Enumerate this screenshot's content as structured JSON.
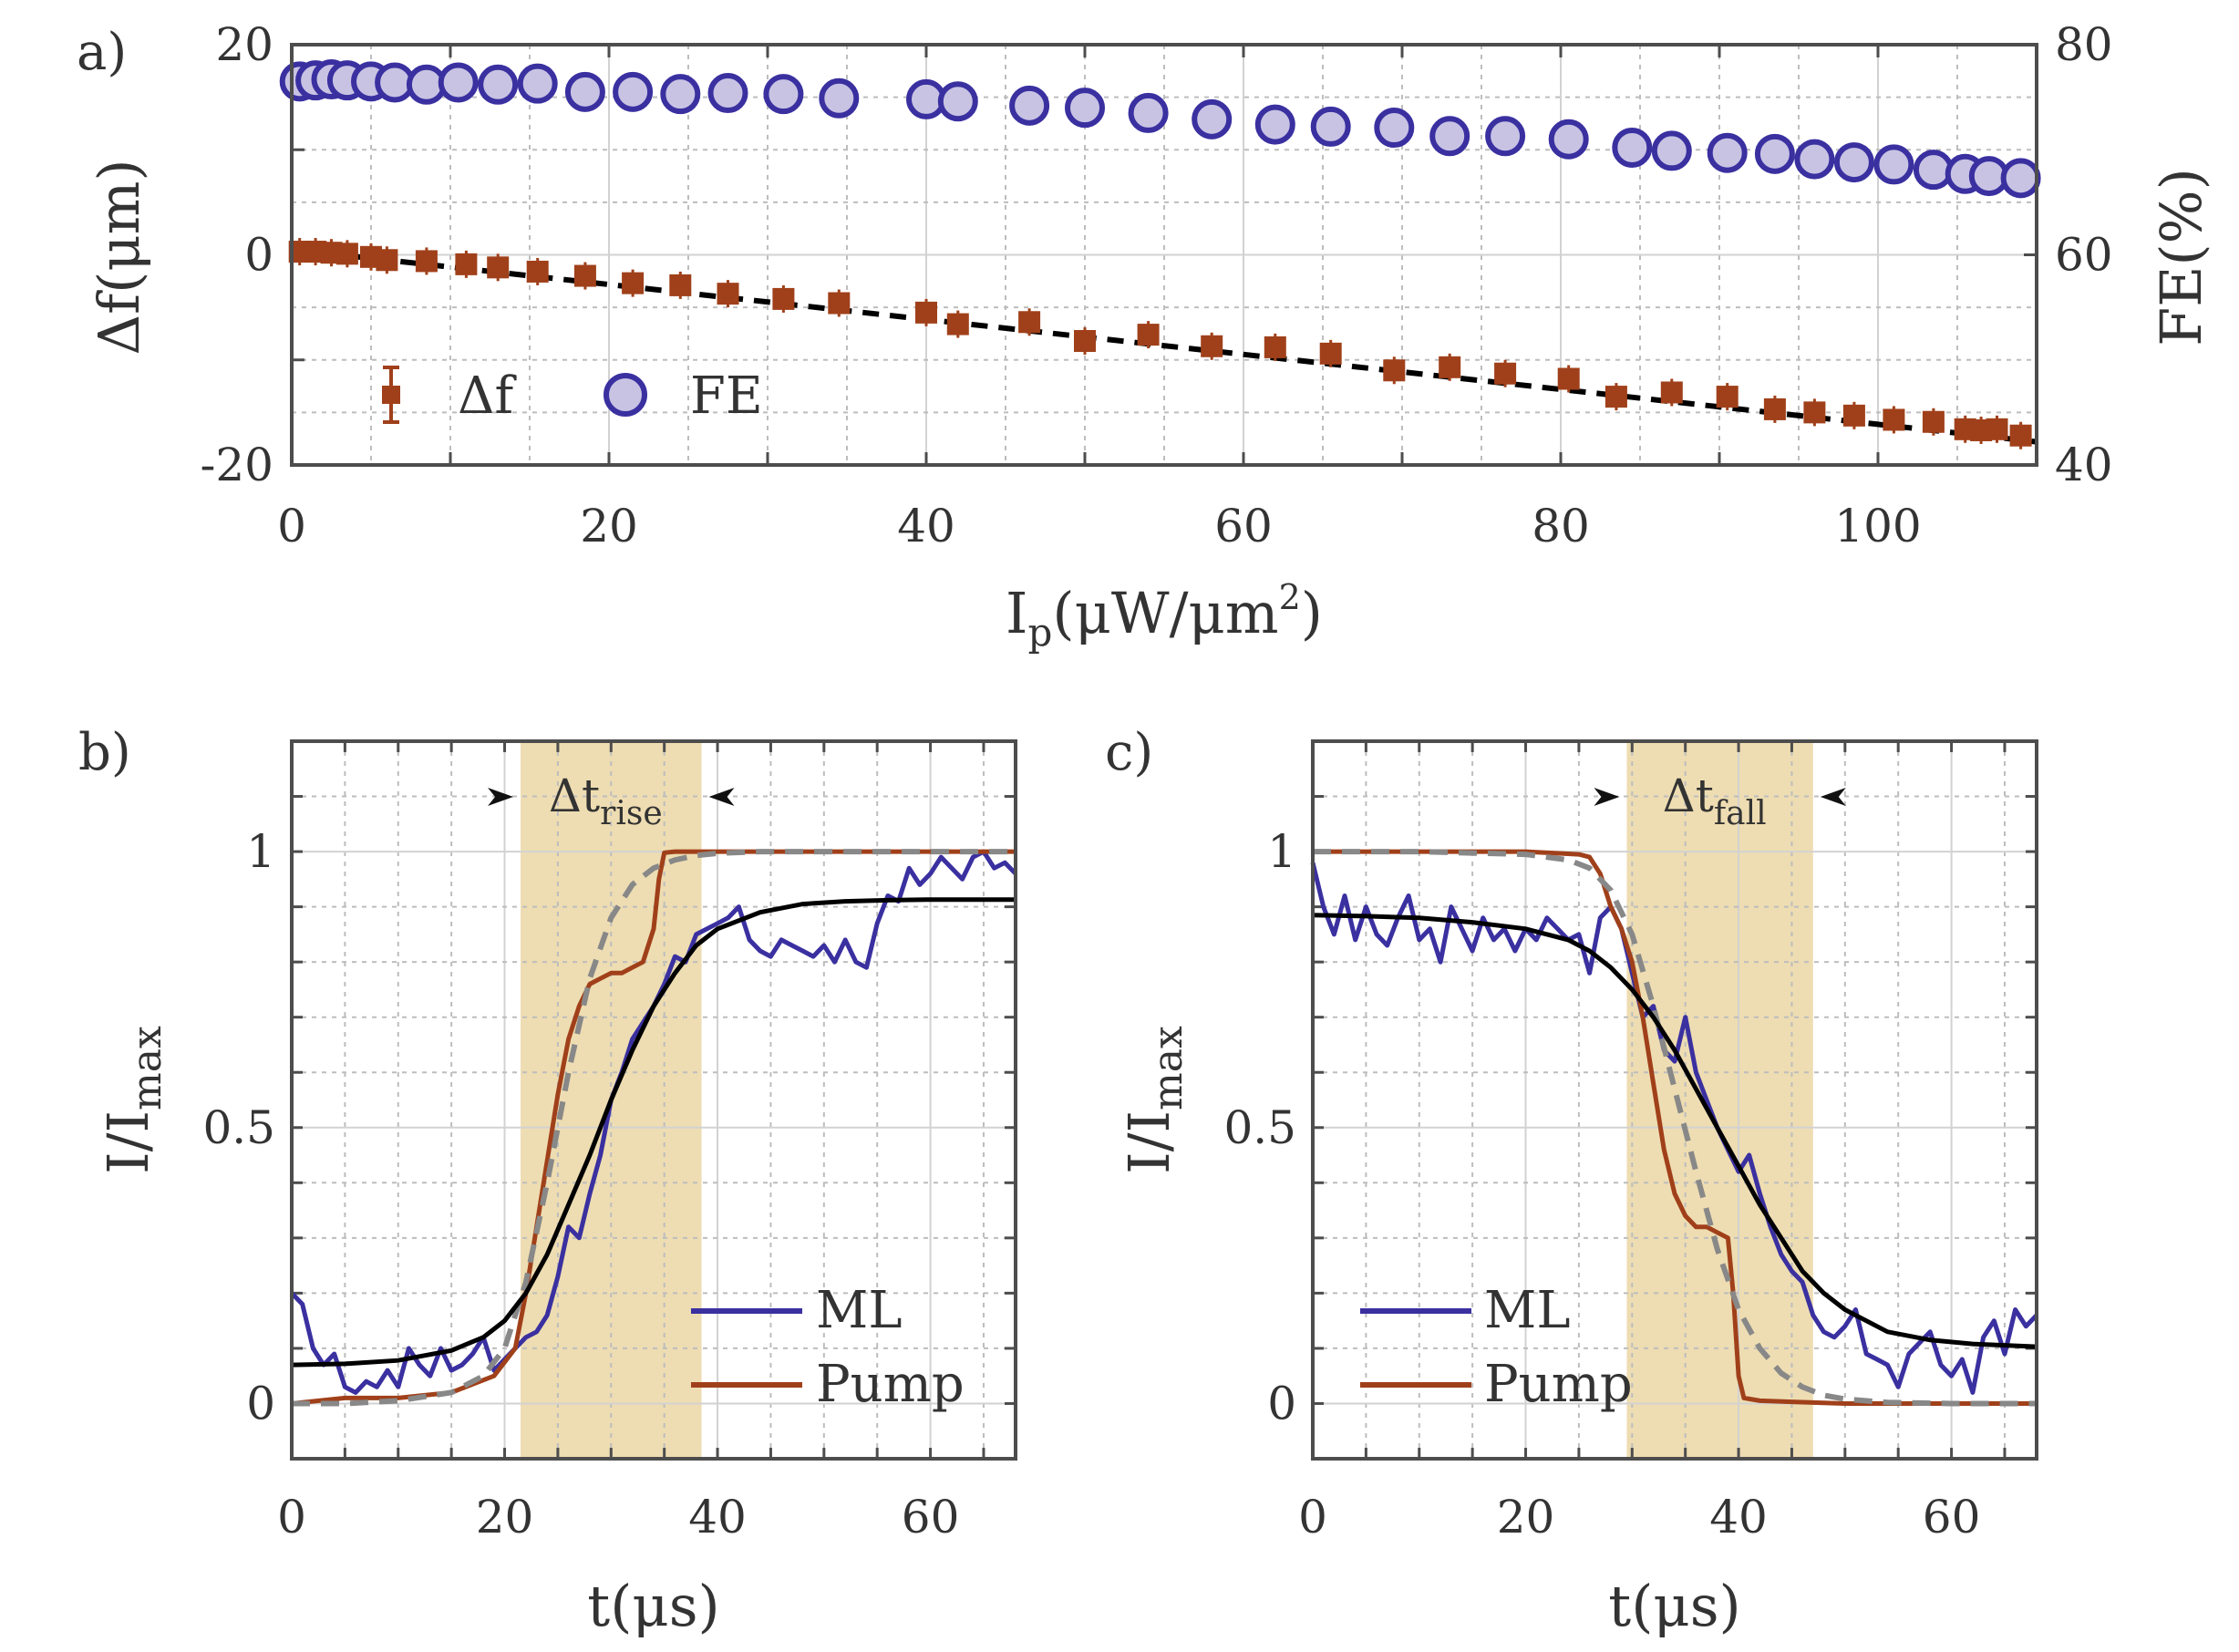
{
  "figure": {
    "panel_labels": [
      "a)",
      "b)",
      "c)"
    ]
  },
  "chart_data": [
    {
      "id": "a",
      "type": "scatter",
      "panel": "a)",
      "xlabel_main": "I",
      "xlabel_sub": "p",
      "xlabel_rest": "(μW/μm",
      "xlabel_sup": "2",
      "xlabel_end": ")",
      "ylabel_left": "Δf(μm)",
      "ylabel_right": "FE(%)",
      "xlim": [
        0,
        110
      ],
      "ylim_left": [
        -20,
        20
      ],
      "ylim_right": [
        40,
        80
      ],
      "xticks": [
        0,
        20,
        40,
        60,
        80,
        100
      ],
      "xtick_labels": [
        "0",
        "20",
        "40",
        "60",
        "80",
        "100"
      ],
      "yticks_left": [
        20,
        0,
        -20
      ],
      "ytick_labels_left": [
        "20",
        "0",
        "-20"
      ],
      "yticks_right": [
        80,
        60,
        40
      ],
      "ytick_labels_right": [
        "80",
        "60",
        "40"
      ],
      "grid": true,
      "legend": {
        "position": "lower-left",
        "entries": [
          "Δf",
          "FE"
        ]
      },
      "colors": {
        "df": "#A0401A",
        "fe_edge": "#3A30A0",
        "fe_fill": "#C8C3E3",
        "fit": "#000000"
      },
      "series": [
        {
          "name": "Δf",
          "axis": "left",
          "marker": "square",
          "x": [
            0.5,
            1.5,
            2.5,
            3.5,
            5,
            6,
            8.5,
            11,
            13,
            15.5,
            18.5,
            21.5,
            24.5,
            27.5,
            31,
            34.5,
            40,
            42,
            46.5,
            50,
            54,
            58,
            62,
            65.5,
            69.5,
            73,
            76.5,
            80.5,
            83.5,
            87,
            90.5,
            93.5,
            96,
            98.5,
            101,
            103.5,
            105.5,
            106.5,
            107.5,
            109
          ],
          "y": [
            0.3,
            0.3,
            0.2,
            0.1,
            -0.2,
            -0.5,
            -0.6,
            -0.9,
            -1.2,
            -1.6,
            -2.0,
            -2.7,
            -2.9,
            -3.7,
            -4.2,
            -4.6,
            -5.5,
            -6.6,
            -6.4,
            -8.2,
            -7.6,
            -8.7,
            -8.8,
            -9.4,
            -11.0,
            -10.7,
            -11.3,
            -11.8,
            -13.5,
            -13.1,
            -13.5,
            -14.7,
            -15.0,
            -15.3,
            -15.7,
            -15.9,
            -16.6,
            -16.7,
            -16.6,
            -17.2
          ]
        },
        {
          "name": "FE",
          "axis": "right",
          "marker": "circle",
          "x": [
            0.5,
            1.5,
            2.5,
            3.5,
            5,
            6.5,
            8.5,
            10.5,
            13,
            15.5,
            18.5,
            21.5,
            24.5,
            27.5,
            31,
            34.5,
            40,
            42,
            46.5,
            50,
            54,
            58,
            62,
            65.5,
            69.5,
            73,
            76.5,
            80.5,
            84.5,
            87,
            90.5,
            93.5,
            96,
            98.5,
            101,
            103.5,
            105.5,
            107,
            109
          ],
          "y": [
            76.5,
            76.6,
            76.7,
            76.6,
            76.5,
            76.4,
            76.2,
            76.4,
            76.2,
            76.3,
            75.5,
            75.5,
            75.3,
            75.4,
            75.3,
            74.9,
            74.8,
            74.6,
            74.2,
            74.0,
            73.5,
            72.9,
            72.4,
            72.2,
            72.1,
            71.3,
            71.3,
            71.0,
            70.2,
            69.9,
            69.7,
            69.6,
            69.1,
            68.8,
            68.6,
            68.1,
            67.7,
            67.5,
            67.3
          ]
        },
        {
          "name": "fit",
          "axis": "left",
          "style": "dashed",
          "x": [
            0,
            110
          ],
          "y": [
            0.5,
            -17.8
          ]
        }
      ]
    },
    {
      "id": "b",
      "type": "line",
      "panel": "b)",
      "xlabel": "t(μs)",
      "ylabel_main": "I/I",
      "ylabel_sub": "max",
      "xlim": [
        0,
        68
      ],
      "ylim": [
        -0.1,
        1.2
      ],
      "xticks": [
        0,
        20,
        40,
        60
      ],
      "xtick_labels": [
        "0",
        "20",
        "40",
        "60"
      ],
      "yticks": [
        0,
        0.5,
        1
      ],
      "ytick_labels": [
        "0",
        "0.5",
        "1"
      ],
      "grid": true,
      "shaded_region": [
        21.5,
        38.5
      ],
      "annotation": {
        "main": "Δt",
        "sub": "rise"
      },
      "legend": {
        "position": "lower-right",
        "entries": [
          "ML",
          "Pump"
        ]
      },
      "series": [
        {
          "name": "ML",
          "color": "#3A30A0",
          "x": [
            0,
            1,
            2,
            3,
            4,
            5,
            6,
            7,
            8,
            9,
            10,
            11,
            12,
            13,
            14,
            15,
            16,
            17,
            18,
            19,
            20,
            21,
            22,
            23,
            24,
            25,
            26,
            27,
            28,
            29,
            30,
            31,
            32,
            33,
            34,
            35,
            36,
            37,
            38,
            39,
            40,
            41,
            42,
            43,
            44,
            45,
            46,
            47,
            48,
            49,
            50,
            51,
            52,
            53,
            54,
            55,
            56,
            57,
            58,
            59,
            60,
            61,
            62,
            63,
            64,
            65,
            66,
            67,
            68
          ],
          "y": [
            0.2,
            0.18,
            0.1,
            0.07,
            0.09,
            0.03,
            0.02,
            0.04,
            0.03,
            0.06,
            0.03,
            0.1,
            0.07,
            0.05,
            0.1,
            0.06,
            0.07,
            0.09,
            0.12,
            0.06,
            0.08,
            0.1,
            0.12,
            0.13,
            0.16,
            0.23,
            0.32,
            0.3,
            0.38,
            0.45,
            0.55,
            0.6,
            0.66,
            0.69,
            0.72,
            0.76,
            0.81,
            0.8,
            0.85,
            0.86,
            0.87,
            0.88,
            0.9,
            0.84,
            0.82,
            0.81,
            0.84,
            0.83,
            0.82,
            0.81,
            0.83,
            0.8,
            0.84,
            0.8,
            0.79,
            0.87,
            0.92,
            0.91,
            0.97,
            0.94,
            0.96,
            0.99,
            0.97,
            0.95,
            0.99,
            1.0,
            0.97,
            0.98,
            0.96
          ]
        },
        {
          "name": "Pump",
          "color": "#A0401A",
          "x": [
            0,
            5,
            10,
            15,
            19,
            21,
            22,
            23,
            24,
            25,
            26,
            27,
            28,
            29,
            30,
            31,
            32,
            33,
            34,
            34.5,
            35,
            36,
            38,
            40,
            45,
            50,
            55,
            60,
            65,
            68
          ],
          "y": [
            0.0,
            0.01,
            0.01,
            0.02,
            0.05,
            0.1,
            0.2,
            0.32,
            0.44,
            0.56,
            0.66,
            0.72,
            0.76,
            0.77,
            0.78,
            0.78,
            0.79,
            0.8,
            0.86,
            0.95,
            0.998,
            1.0,
            1.0,
            1.0,
            1.0,
            1.0,
            1.0,
            1.0,
            1.0,
            1.0
          ]
        },
        {
          "name": "pump_fit",
          "color": "#888888",
          "style": "dashed",
          "x": [
            0,
            5,
            10,
            15,
            18,
            20,
            22,
            24,
            26,
            28,
            30,
            32,
            34,
            36,
            38,
            40,
            44,
            50,
            60,
            68
          ],
          "y": [
            0.0,
            0.0,
            0.005,
            0.02,
            0.05,
            0.1,
            0.22,
            0.4,
            0.6,
            0.77,
            0.88,
            0.94,
            0.97,
            0.985,
            0.993,
            0.997,
            1.0,
            1.0,
            1.0,
            1.0
          ]
        },
        {
          "name": "ml_fit",
          "color": "#000000",
          "x": [
            0,
            5,
            10,
            15,
            18,
            20,
            22,
            24,
            26,
            28,
            30,
            32,
            34,
            36,
            38,
            40,
            44,
            48,
            52,
            56,
            60,
            64,
            68
          ],
          "y": [
            0.07,
            0.072,
            0.078,
            0.096,
            0.12,
            0.15,
            0.2,
            0.27,
            0.36,
            0.45,
            0.55,
            0.64,
            0.72,
            0.78,
            0.83,
            0.86,
            0.89,
            0.905,
            0.91,
            0.912,
            0.913,
            0.913,
            0.913
          ]
        }
      ]
    },
    {
      "id": "c",
      "type": "line",
      "panel": "c)",
      "xlabel": "t(μs)",
      "ylabel_main": "I/I",
      "ylabel_sub": "max",
      "xlim": [
        0,
        68
      ],
      "ylim": [
        -0.1,
        1.2
      ],
      "xticks": [
        0,
        20,
        40,
        60
      ],
      "xtick_labels": [
        "0",
        "20",
        "40",
        "60"
      ],
      "yticks": [
        0,
        0.5,
        1
      ],
      "ytick_labels": [
        "0",
        "0.5",
        "1"
      ],
      "grid": true,
      "shaded_region": [
        29.5,
        47
      ],
      "annotation": {
        "main": "Δt",
        "sub": "fall"
      },
      "legend": {
        "position": "lower-left",
        "entries": [
          "ML",
          "Pump"
        ]
      },
      "series": [
        {
          "name": "ML",
          "color": "#3A30A0",
          "x": [
            0,
            1,
            2,
            3,
            4,
            5,
            6,
            7,
            8,
            9,
            10,
            11,
            12,
            13,
            14,
            15,
            16,
            17,
            18,
            19,
            20,
            21,
            22,
            23,
            24,
            25,
            26,
            27,
            28,
            29,
            30,
            31,
            32,
            33,
            34,
            35,
            36,
            37,
            38,
            39,
            40,
            41,
            42,
            43,
            44,
            45,
            46,
            47,
            48,
            49,
            50,
            51,
            52,
            53,
            54,
            55,
            56,
            57,
            58,
            59,
            60,
            61,
            62,
            63,
            64,
            65,
            66,
            67,
            68
          ],
          "y": [
            0.98,
            0.9,
            0.85,
            0.92,
            0.84,
            0.9,
            0.85,
            0.83,
            0.88,
            0.92,
            0.84,
            0.86,
            0.8,
            0.9,
            0.86,
            0.82,
            0.88,
            0.84,
            0.86,
            0.82,
            0.86,
            0.84,
            0.88,
            0.86,
            0.84,
            0.85,
            0.78,
            0.88,
            0.9,
            0.86,
            0.78,
            0.7,
            0.72,
            0.64,
            0.62,
            0.7,
            0.6,
            0.55,
            0.5,
            0.46,
            0.42,
            0.45,
            0.38,
            0.32,
            0.27,
            0.24,
            0.22,
            0.16,
            0.13,
            0.12,
            0.14,
            0.17,
            0.09,
            0.08,
            0.07,
            0.03,
            0.09,
            0.11,
            0.13,
            0.07,
            0.05,
            0.08,
            0.02,
            0.12,
            0.15,
            0.09,
            0.17,
            0.14,
            0.16
          ]
        },
        {
          "name": "Pump",
          "color": "#A0401A",
          "x": [
            0,
            5,
            10,
            15,
            20,
            25,
            26,
            27,
            28,
            29,
            30,
            31,
            32,
            33,
            34,
            35,
            36,
            37,
            38,
            39,
            39.5,
            40,
            40.5,
            42,
            45,
            50,
            55,
            60,
            65,
            68
          ],
          "y": [
            1.0,
            1.0,
            1.0,
            1.0,
            1.0,
            0.995,
            0.99,
            0.96,
            0.9,
            0.86,
            0.8,
            0.7,
            0.58,
            0.46,
            0.38,
            0.34,
            0.32,
            0.32,
            0.31,
            0.3,
            0.2,
            0.05,
            0.01,
            0.005,
            0.003,
            0.0,
            0.0,
            0.0,
            0.0,
            0.0
          ]
        },
        {
          "name": "pump_fit",
          "color": "#888888",
          "style": "dashed",
          "x": [
            0,
            10,
            20,
            24,
            26,
            28,
            30,
            32,
            34,
            36,
            38,
            40,
            42,
            44,
            46,
            48,
            50,
            54,
            60,
            68
          ],
          "y": [
            1.0,
            1.0,
            0.995,
            0.985,
            0.97,
            0.93,
            0.85,
            0.72,
            0.57,
            0.42,
            0.28,
            0.17,
            0.1,
            0.055,
            0.03,
            0.015,
            0.008,
            0.002,
            0.0,
            0.0
          ]
        },
        {
          "name": "ml_fit",
          "color": "#000000",
          "x": [
            0,
            5,
            10,
            15,
            20,
            24,
            26,
            28,
            30,
            32,
            34,
            36,
            38,
            40,
            42,
            44,
            46,
            48,
            50,
            54,
            58,
            62,
            68
          ],
          "y": [
            0.885,
            0.883,
            0.88,
            0.872,
            0.86,
            0.84,
            0.82,
            0.79,
            0.75,
            0.7,
            0.64,
            0.57,
            0.5,
            0.43,
            0.36,
            0.3,
            0.24,
            0.2,
            0.17,
            0.13,
            0.115,
            0.108,
            0.103
          ]
        }
      ]
    }
  ]
}
